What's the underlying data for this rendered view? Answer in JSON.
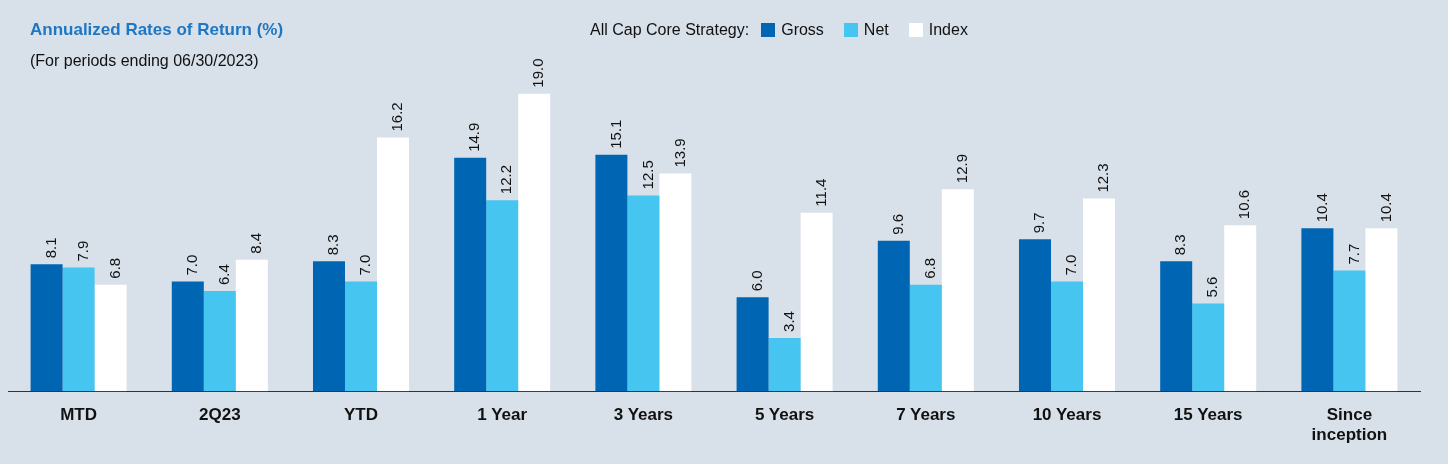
{
  "chart_data": {
    "type": "bar",
    "title": "Annualized Rates of Return (%)",
    "subtitle": "(For periods ending 06/30/2023)",
    "legend_title": "All Cap Core Strategy:",
    "legend": "top right",
    "grid": false,
    "categories": [
      "MTD",
      "2Q23",
      "YTD",
      "1 Year",
      "3 Years",
      "5 Years",
      "7 Years",
      "10 Years",
      "15 Years",
      "Since inception"
    ],
    "series": [
      {
        "name": "Gross",
        "color": "#0066b3",
        "values": [
          8.1,
          7.0,
          8.3,
          14.9,
          15.1,
          6.0,
          9.6,
          9.7,
          8.3,
          10.4
        ],
        "value_labels": [
          "8.1",
          "7.0",
          "8.3",
          "14.9",
          "15.1",
          "6.0",
          "9.6",
          "9.7",
          "8.3",
          "10.4"
        ]
      },
      {
        "name": "Net",
        "color": "#45c5f0",
        "values": [
          7.9,
          6.4,
          7.0,
          12.2,
          12.5,
          3.4,
          6.8,
          7.0,
          5.6,
          7.7
        ],
        "value_labels": [
          "7.9",
          "6.4",
          "7.0",
          "12.2",
          "12.5",
          "3.4",
          "6.8",
          "7.0",
          "5.6",
          "7.7"
        ]
      },
      {
        "name": "Index",
        "color": "#ffffff",
        "values": [
          6.8,
          8.4,
          16.2,
          19.0,
          13.9,
          11.4,
          12.9,
          12.3,
          10.6,
          10.4
        ],
        "value_labels": [
          "6.8",
          "8.4",
          "16.2",
          "19.0",
          "13.9",
          "11.4",
          "12.9",
          "12.3",
          "10.6",
          "10.4"
        ]
      }
    ]
  }
}
